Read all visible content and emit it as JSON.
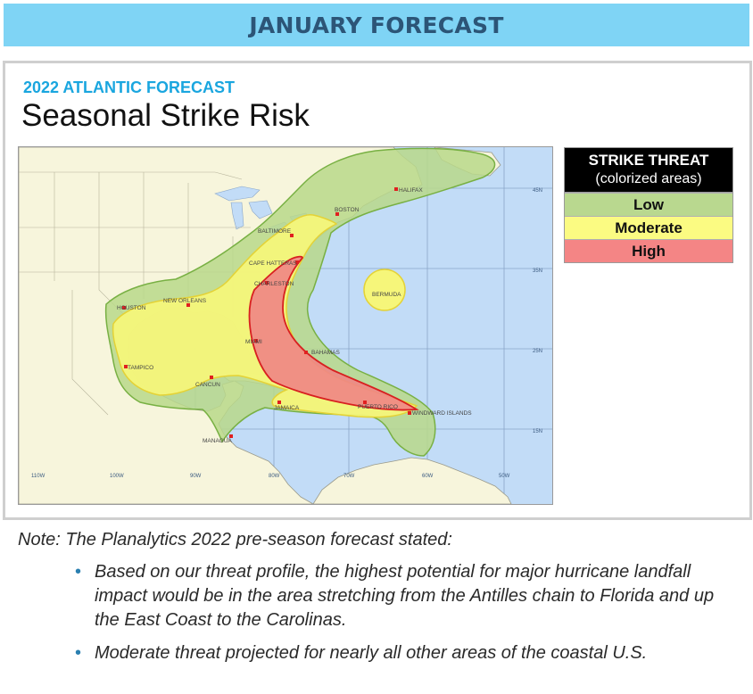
{
  "banner": {
    "title": "JANUARY FORECAST"
  },
  "header": {
    "subtitle": "2022 ATLANTIC FORECAST",
    "title": "Seasonal Strike Risk"
  },
  "legend": {
    "heading": "STRIKE THREAT",
    "subheading": "(colorized areas)",
    "levels": [
      {
        "label": "Low",
        "color": "#b9d88f"
      },
      {
        "label": "Moderate",
        "color": "#fbfb82"
      },
      {
        "label": "High",
        "color": "#f48585"
      }
    ]
  },
  "map": {
    "colors": {
      "ocean": "#c2dcf7",
      "land": "#f7f5dc",
      "low": "#b8d88a",
      "moderate": "#f6f67a",
      "high": "#ef8585"
    },
    "cities": [
      "HALIFAX",
      "BOSTON",
      "BALTIMORE",
      "CAPE HATTERAS",
      "CHARLESTON",
      "NEW ORLEANS",
      "HOUSTON",
      "MIAMI",
      "BAHAMAS",
      "TAMPICO",
      "CANCUN",
      "JAMAICA",
      "PUERTO RICO",
      "WINDWARD ISLANDS",
      "MANAGUA",
      "BERMUDA"
    ],
    "lat_labels": [
      "45N",
      "35N",
      "25N",
      "15N"
    ],
    "lon_labels": [
      "110W",
      "100W",
      "90W",
      "80W",
      "70W",
      "60W",
      "50W"
    ]
  },
  "note": {
    "intro": "Note: The Planalytics 2022 pre-season forecast stated:",
    "bullets": [
      "Based on our threat profile, the highest potential for major hurricane landfall impact would be in the area stretching from the Antilles chain to Florida and up the East Coast to the Carolinas.",
      "Moderate threat projected for nearly all other areas of the coastal U.S."
    ]
  }
}
